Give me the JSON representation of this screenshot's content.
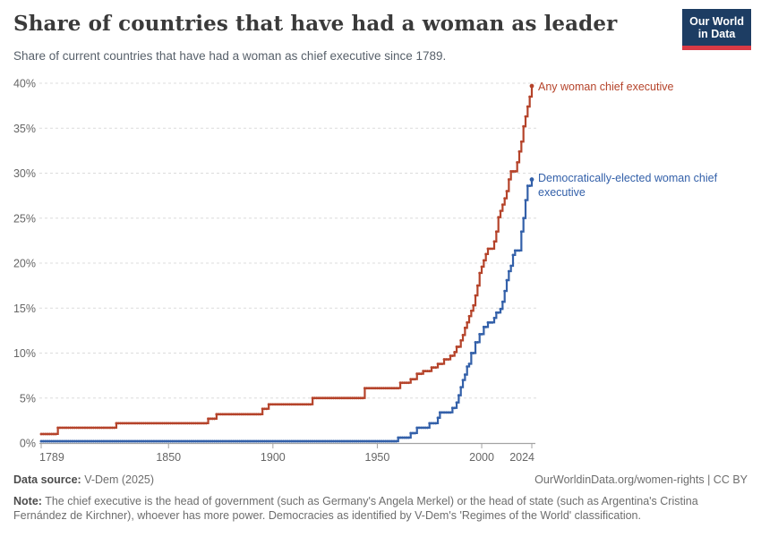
{
  "header": {
    "title": "Share of countries that have had a woman as leader",
    "subtitle": "Share of current countries that have had a woman as chief executive since 1789.",
    "logo": {
      "line1": "Our World",
      "line2": "in Data",
      "bg_color": "#1d3d63",
      "accent_color": "#d93a45"
    }
  },
  "chart_data": {
    "type": "line",
    "title": "Share of countries that have had a woman as leader",
    "xlabel": "",
    "ylabel": "",
    "x_axis": {
      "range": [
        1789,
        2024
      ],
      "ticks": [
        1789,
        1850,
        1900,
        1950,
        2000,
        2024
      ],
      "tick_color": "#666666"
    },
    "y_axis": {
      "range": [
        0,
        40
      ],
      "ticks": [
        0,
        5,
        10,
        15,
        20,
        25,
        30,
        35,
        40
      ],
      "tick_suffix": "%",
      "gridlines": "dashed",
      "tick_color": "#666666"
    },
    "legend_position": "end-of-line labels",
    "series": [
      {
        "name": "Any woman chief executive",
        "color": "#b5432a",
        "label_lines": [
          "Any woman chief executive"
        ],
        "steps": [
          [
            1789,
            1.0
          ],
          [
            1797,
            1.7
          ],
          [
            1825,
            2.2
          ],
          [
            1869,
            2.7
          ],
          [
            1873,
            3.2
          ],
          [
            1895,
            3.8
          ],
          [
            1898,
            4.3
          ],
          [
            1919,
            5.0
          ],
          [
            1944,
            6.1
          ],
          [
            1961,
            6.7
          ],
          [
            1966,
            7.1
          ],
          [
            1969,
            7.7
          ],
          [
            1972,
            8.0
          ],
          [
            1976,
            8.4
          ],
          [
            1979,
            8.8
          ],
          [
            1982,
            9.3
          ],
          [
            1985,
            9.7
          ],
          [
            1987,
            10.1
          ],
          [
            1988,
            10.7
          ],
          [
            1990,
            11.4
          ],
          [
            1991,
            12.0
          ],
          [
            1992,
            12.8
          ],
          [
            1993,
            13.4
          ],
          [
            1994,
            14.1
          ],
          [
            1995,
            14.7
          ],
          [
            1996,
            15.3
          ],
          [
            1997,
            16.4
          ],
          [
            1998,
            17.5
          ],
          [
            1999,
            18.9
          ],
          [
            2000,
            19.6
          ],
          [
            2001,
            20.3
          ],
          [
            2002,
            21.0
          ],
          [
            2003,
            21.6
          ],
          [
            2006,
            22.4
          ],
          [
            2007,
            23.5
          ],
          [
            2008,
            25.1
          ],
          [
            2009,
            25.8
          ],
          [
            2010,
            26.5
          ],
          [
            2011,
            27.2
          ],
          [
            2012,
            28.0
          ],
          [
            2013,
            29.3
          ],
          [
            2014,
            30.2
          ],
          [
            2017,
            31.2
          ],
          [
            2018,
            32.4
          ],
          [
            2019,
            33.5
          ],
          [
            2020,
            35.2
          ],
          [
            2021,
            36.3
          ],
          [
            2022,
            37.4
          ],
          [
            2023,
            38.5
          ],
          [
            2024,
            39.7
          ]
        ]
      },
      {
        "name": "Democratically-elected woman chief executive",
        "color": "#3360a9",
        "label_lines": [
          "Democratically-elected woman chief",
          "executive"
        ],
        "steps": [
          [
            1789,
            0.0
          ],
          [
            1960,
            0.6
          ],
          [
            1966,
            1.1
          ],
          [
            1969,
            1.7
          ],
          [
            1975,
            2.2
          ],
          [
            1979,
            2.8
          ],
          [
            1980,
            3.4
          ],
          [
            1986,
            3.9
          ],
          [
            1988,
            4.5
          ],
          [
            1989,
            5.3
          ],
          [
            1990,
            6.2
          ],
          [
            1991,
            7.0
          ],
          [
            1992,
            7.6
          ],
          [
            1993,
            8.5
          ],
          [
            1994,
            8.8
          ],
          [
            1995,
            10.0
          ],
          [
            1997,
            11.2
          ],
          [
            1999,
            12.1
          ],
          [
            2001,
            12.9
          ],
          [
            2003,
            13.4
          ],
          [
            2006,
            13.9
          ],
          [
            2007,
            14.5
          ],
          [
            2009,
            14.9
          ],
          [
            2010,
            15.7
          ],
          [
            2011,
            16.9
          ],
          [
            2012,
            18.1
          ],
          [
            2013,
            19.1
          ],
          [
            2014,
            19.7
          ],
          [
            2015,
            20.9
          ],
          [
            2016,
            21.4
          ],
          [
            2019,
            23.5
          ],
          [
            2020,
            25.0
          ],
          [
            2021,
            27.0
          ],
          [
            2022,
            28.6
          ],
          [
            2024,
            29.3
          ]
        ]
      }
    ]
  },
  "footer": {
    "source_label": "Data source:",
    "source_value": " V-Dem (2025)",
    "rights": "OurWorldinData.org/women-rights | CC BY",
    "note_label": "Note:",
    "note_text": " The chief executive is the head of government (such as Germany's Angela Merkel) or the head of state (such as Argentina's Cristina Fernández de Kirchner), whoever has more power. Democracies as identified by V-Dem's 'Regimes of the World' classification."
  }
}
